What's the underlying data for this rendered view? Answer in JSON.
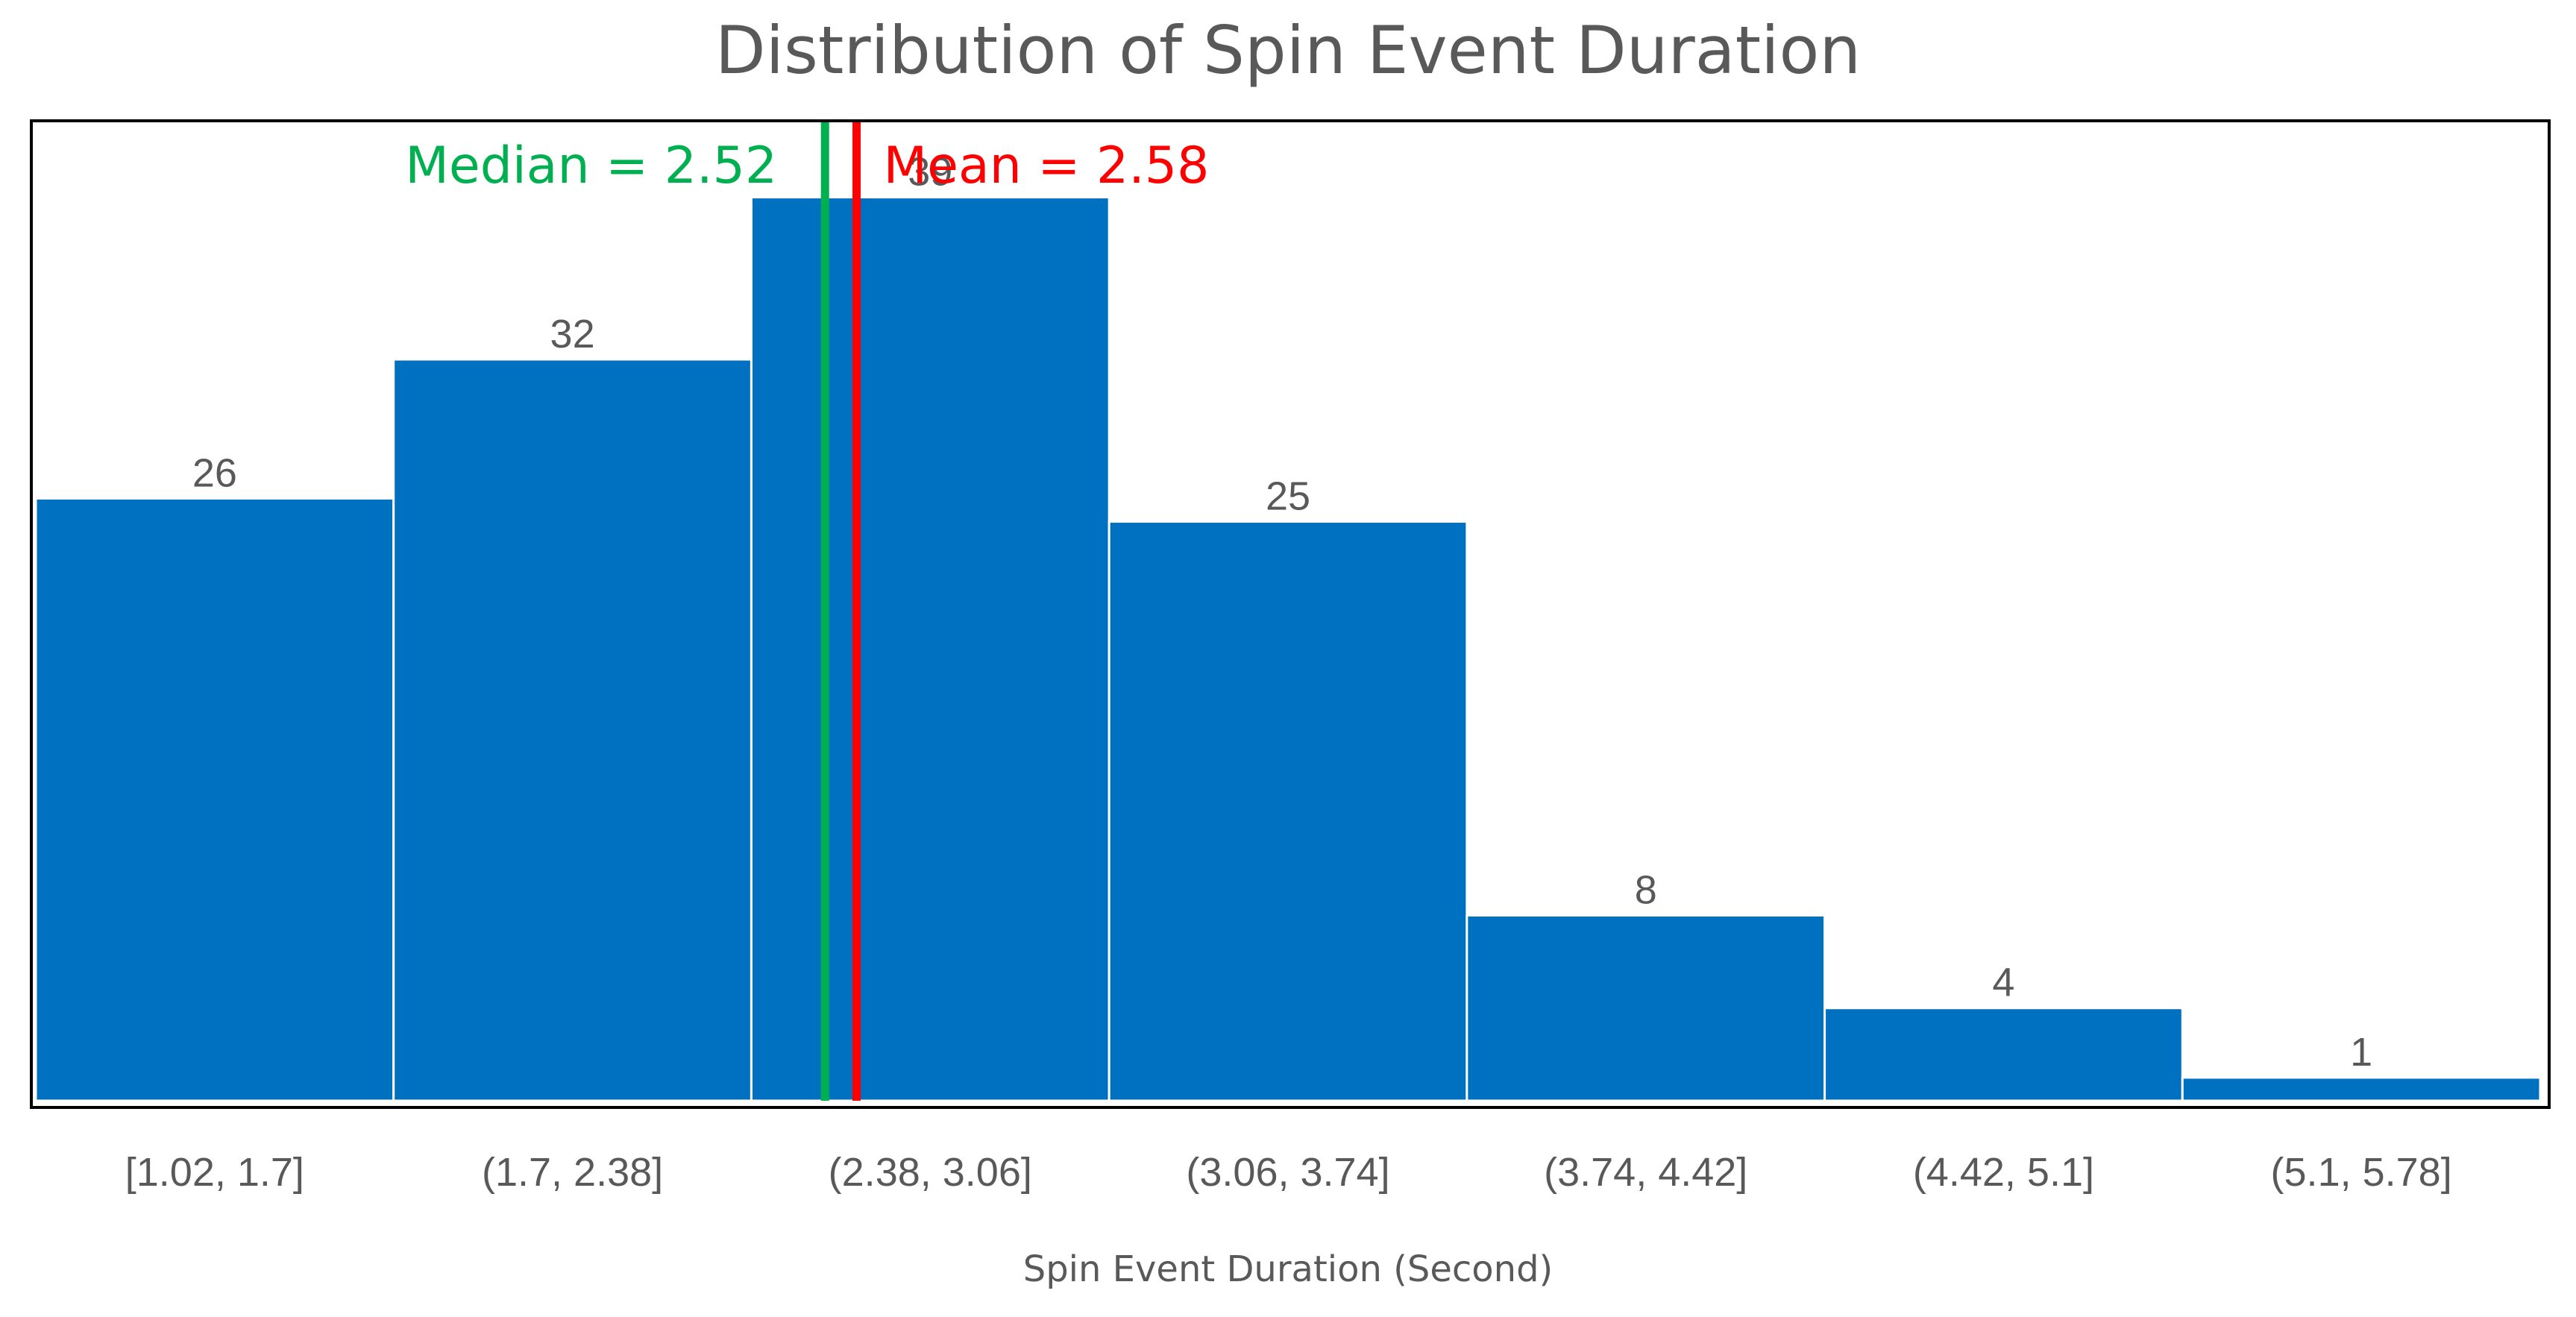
{
  "chart_data": {
    "type": "bar",
    "title": "Distribution of Spin Event Duration",
    "xlabel": "Spin Event Duration (Second)",
    "ylabel": "",
    "categories": [
      "[1.02, 1.7]",
      "(1.7, 2.38]",
      "(2.38, 3.06]",
      "(3.06, 3.74]",
      "(3.74, 4.42]",
      "(4.42, 5.1]",
      "(5.1, 5.78]"
    ],
    "bin_edges": [
      1.02,
      1.7,
      2.38,
      3.06,
      3.74,
      4.42,
      5.1,
      5.78
    ],
    "values": [
      26,
      32,
      39,
      25,
      8,
      4,
      1
    ],
    "ylim": [
      0,
      42.3
    ],
    "bar_color": "#0070C0",
    "bar_edge_color": "#ffffff",
    "annotations": [
      {
        "label": "Median = 2.52",
        "value": 2.52,
        "color": "#00B050"
      },
      {
        "label": "Mean = 2.58",
        "value": 2.58,
        "color": "#FF0000"
      }
    ],
    "grid": false,
    "legend": "none"
  }
}
